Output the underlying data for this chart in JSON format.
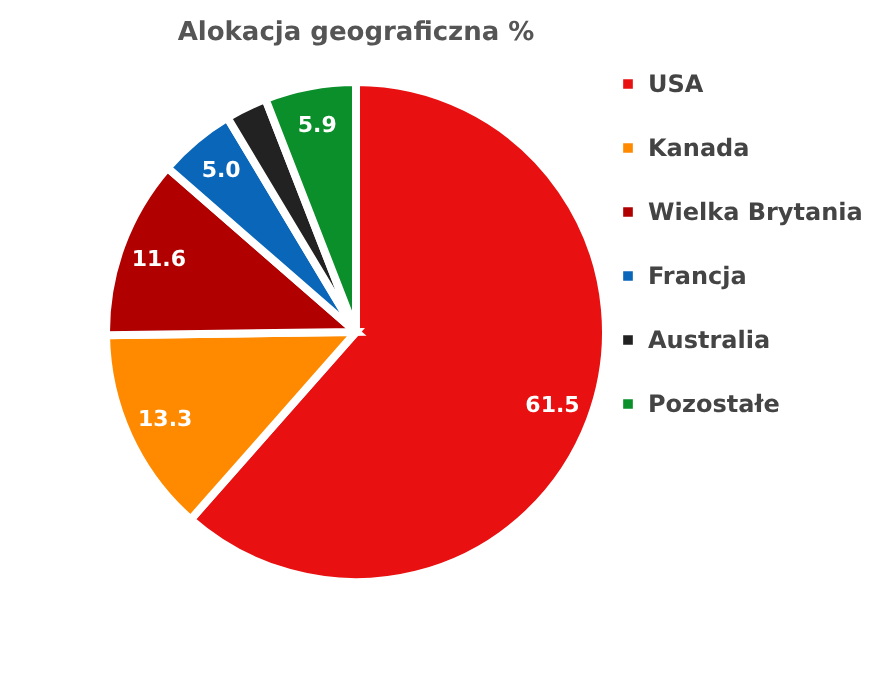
{
  "chart_data": {
    "type": "pie",
    "title": "Alokacja geograficzna %",
    "categories": [
      "USA",
      "Kanada",
      "Wielka Brytania",
      "Francja",
      "Australia",
      "Pozostałe"
    ],
    "values": [
      61.5,
      13.3,
      11.6,
      5.0,
      2.7,
      5.9
    ],
    "value_labels": [
      "61.5",
      "13.3",
      "11.6",
      "5.0",
      null,
      "5.9"
    ],
    "colors": [
      "#e81010",
      "#ff8a00",
      "#b00000",
      "#0a66b8",
      "#222222",
      "#0a8f2a"
    ],
    "legend": "right"
  }
}
